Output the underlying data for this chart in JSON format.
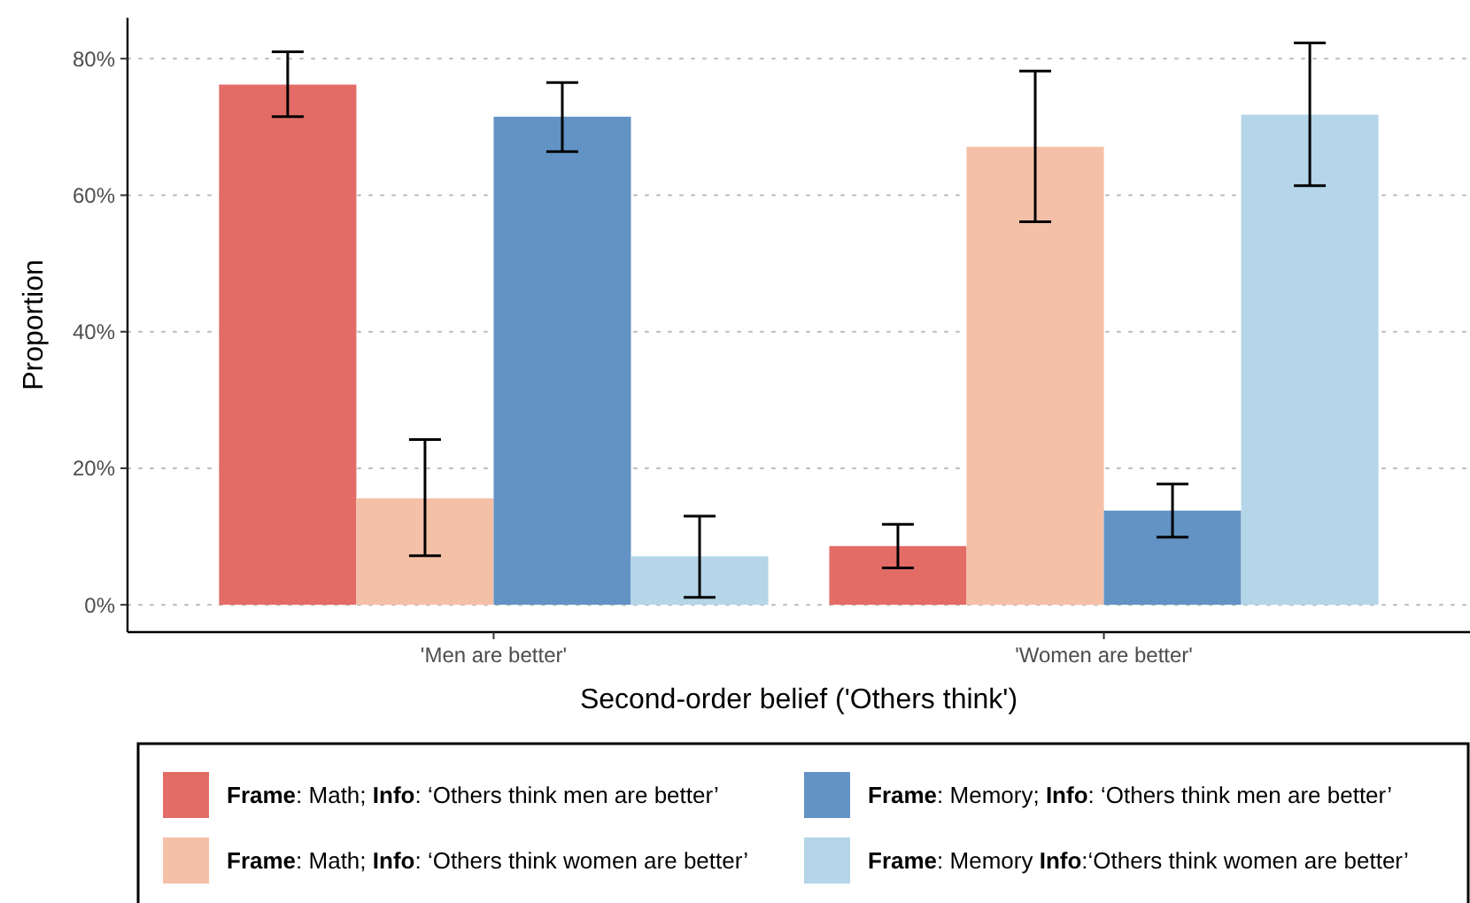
{
  "chart_data": {
    "type": "bar",
    "xlabel": "Second-order belief ('Others think')",
    "ylabel": "Proportion",
    "categories": [
      "'Men are better'",
      "'Women are better'"
    ],
    "series": [
      {
        "name": "Frame: Math; Info: ‘Others think men are better’",
        "color": "#e36c67",
        "values": [
          76.2,
          8.6
        ],
        "errors": [
          [
            71.5,
            81.0
          ],
          [
            5.4,
            11.8
          ]
        ]
      },
      {
        "name": "Frame: Math; Info: ‘Others think women are better’",
        "color": "#f5c0a8",
        "values": [
          15.6,
          67.1
        ],
        "errors": [
          [
            7.2,
            24.2
          ],
          [
            56.1,
            78.2
          ]
        ]
      },
      {
        "name": "Frame: Memory; Info: ‘Others think men are better’",
        "color": "#6393c5",
        "values": [
          71.5,
          13.8
        ],
        "errors": [
          [
            66.4,
            76.5
          ],
          [
            9.9,
            17.7
          ]
        ]
      },
      {
        "name": "Frame: Memory Info:‘Others think women are better’",
        "color": "#b4d6e8",
        "values": [
          7.1,
          71.8
        ],
        "errors": [
          [
            1.1,
            13.0
          ],
          [
            61.4,
            82.3
          ]
        ]
      }
    ],
    "ylim": [
      -4,
      86
    ],
    "yticks": [
      {
        "value": 0,
        "label": "0%"
      },
      {
        "value": 20,
        "label": "20%"
      },
      {
        "value": 40,
        "label": "40%"
      },
      {
        "value": 60,
        "label": "60%"
      },
      {
        "value": 80,
        "label": "80%"
      }
    ],
    "grid": "y",
    "legend": "bottom"
  }
}
